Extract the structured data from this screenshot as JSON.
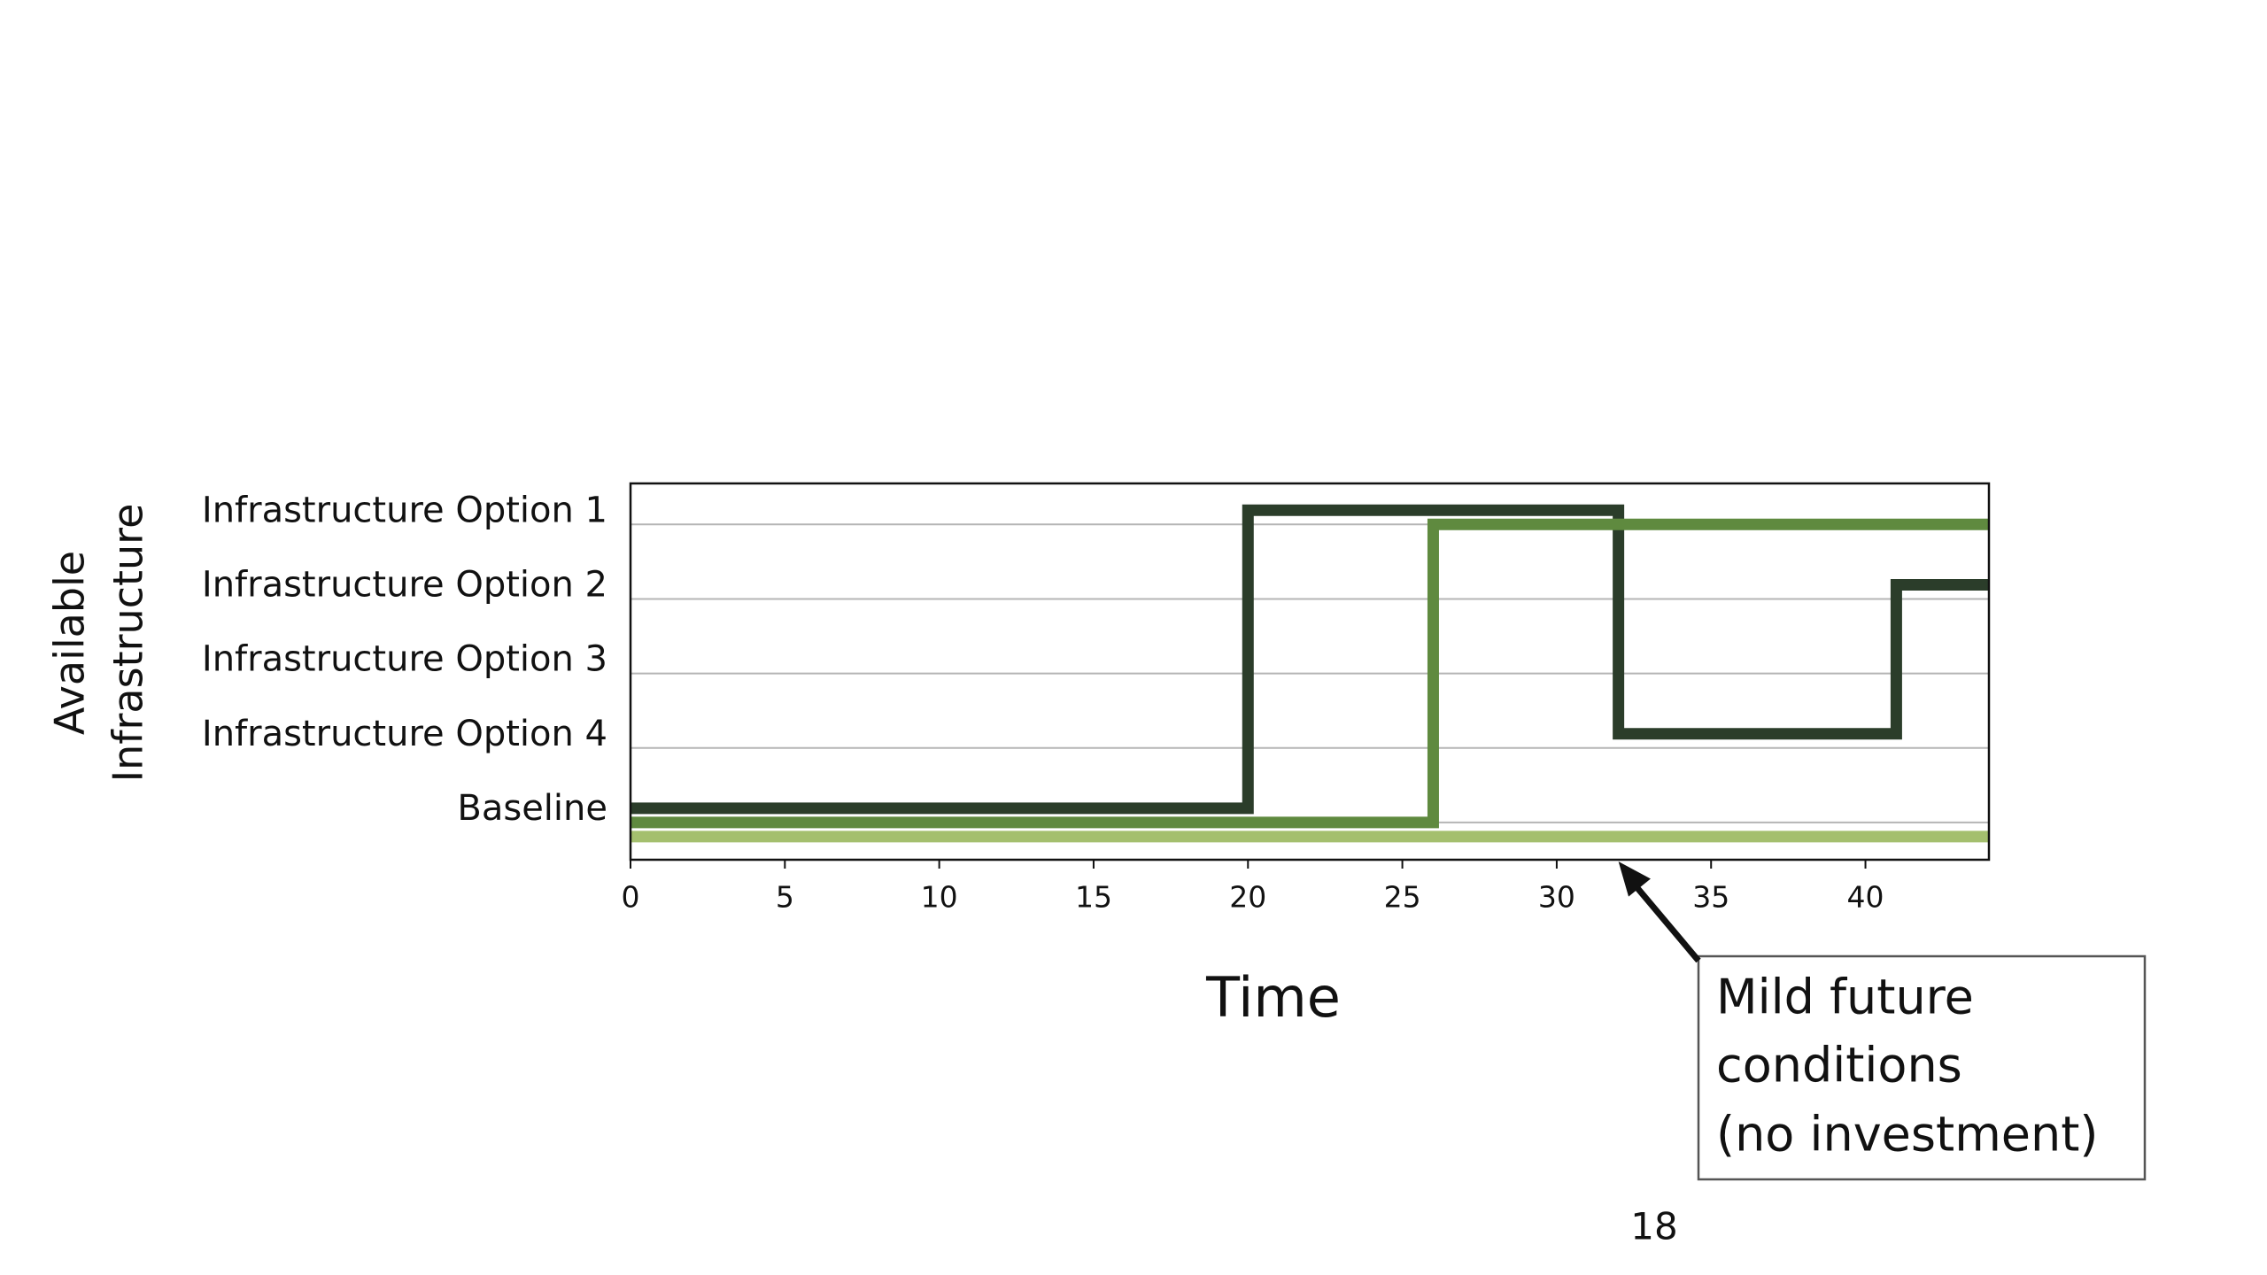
{
  "chart_data": {
    "type": "line",
    "step": "post",
    "xlabel": "Time",
    "ylabel": [
      "Available",
      "Infrastructure"
    ],
    "xlim": [
      0,
      44
    ],
    "xticks": [
      0,
      5,
      10,
      15,
      20,
      25,
      30,
      35,
      40
    ],
    "ylim": [
      -0.5,
      4.55
    ],
    "yticks": [
      {
        "value": 0,
        "label": "Baseline"
      },
      {
        "value": 1,
        "label": "Infrastructure Option 4"
      },
      {
        "value": 2,
        "label": "Infrastructure Option 3"
      },
      {
        "value": 3,
        "label": "Infrastructure Option 2"
      },
      {
        "value": 4,
        "label": "Infrastructure Option 1"
      }
    ],
    "grid": true,
    "series": [
      {
        "color": "#2b3d2a",
        "x": [
          0,
          20,
          32,
          41,
          44
        ],
        "values": [
          0,
          4,
          1,
          3,
          3
        ]
      },
      {
        "color": "#5f8a3f",
        "x": [
          0,
          26,
          44
        ],
        "values": [
          0,
          4,
          4
        ]
      },
      {
        "color": "#a4bf6e",
        "x": [
          0,
          44
        ],
        "values": [
          0,
          0
        ]
      }
    ],
    "annotation": {
      "lines": [
        "Mild future",
        "conditions",
        "(no investment)"
      ],
      "x": 32
    }
  },
  "slide_number": 18
}
